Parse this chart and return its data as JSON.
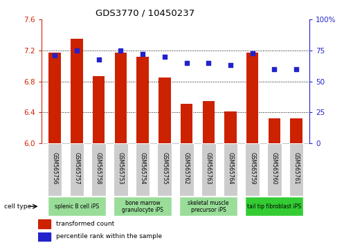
{
  "title": "GDS3770 / 10450237",
  "samples": [
    "GSM565756",
    "GSM565757",
    "GSM565758",
    "GSM565753",
    "GSM565754",
    "GSM565755",
    "GSM565762",
    "GSM565763",
    "GSM565764",
    "GSM565759",
    "GSM565760",
    "GSM565761"
  ],
  "bar_values": [
    7.17,
    7.35,
    6.87,
    7.17,
    7.12,
    6.85,
    6.51,
    6.55,
    6.41,
    7.17,
    6.32,
    6.32
  ],
  "dot_values": [
    71,
    75,
    68,
    75,
    72,
    70,
    65,
    65,
    63,
    73,
    60,
    60
  ],
  "ylim_left": [
    6.0,
    7.6
  ],
  "ylim_right": [
    0,
    100
  ],
  "yticks_left": [
    6.0,
    6.4,
    6.8,
    7.2,
    7.6
  ],
  "yticks_right": [
    0,
    25,
    50,
    75,
    100
  ],
  "ytick_labels_right": [
    "0",
    "25",
    "50",
    "75",
    "100%"
  ],
  "bar_color": "#cc2200",
  "dot_color": "#2222cc",
  "cell_type_groups": [
    {
      "label": "splenic B cell iPS",
      "indices": [
        0,
        1,
        2
      ],
      "color": "#99dd99"
    },
    {
      "label": "bone marrow\ngranulocyte iPS",
      "indices": [
        3,
        4,
        5
      ],
      "color": "#99dd99"
    },
    {
      "label": "skeletal muscle\nprecursor iPS",
      "indices": [
        6,
        7,
        8
      ],
      "color": "#99dd99"
    },
    {
      "label": "tail tip fibroblast iPS",
      "indices": [
        9,
        10,
        11
      ],
      "color": "#33cc33"
    }
  ],
  "legend_items": [
    {
      "label": "transformed count",
      "color": "#cc2200"
    },
    {
      "label": "percentile rank within the sample",
      "color": "#2222cc"
    }
  ],
  "xlabel_cell_type": "cell type",
  "bar_width": 0.55,
  "background_color": "#ffffff",
  "tick_color_left": "#cc2200",
  "tick_color_right": "#2222cc",
  "sample_box_color": "#cccccc",
  "grid_yticks": [
    6.4,
    6.8,
    7.2
  ]
}
